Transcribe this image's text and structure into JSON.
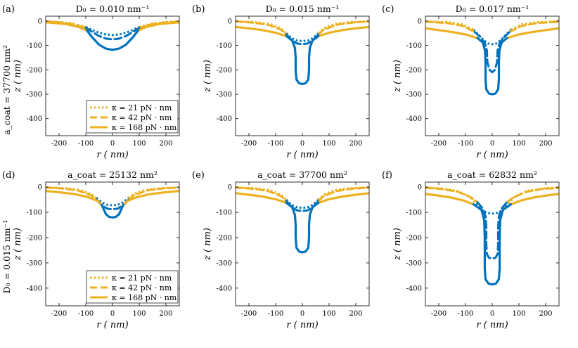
{
  "row_labels": [
    "a_coat = 37700 nm²",
    "D₀ = 0.015 nm⁻¹"
  ],
  "legend": [
    {
      "label": "κ = 21 pN · nm",
      "style": "dotted"
    },
    {
      "label": "κ = 42 pN · nm",
      "style": "dashed"
    },
    {
      "label": "κ = 168 pN · nm",
      "style": "solid"
    }
  ],
  "colors": {
    "coat": "#0072BD",
    "bare": "#EDB120"
  },
  "chart_data": [
    {
      "panel": "(a)",
      "title": "D₀ = 0.010 nm⁻¹",
      "type": "line",
      "xlabel": "r ( nm)",
      "ylabel": "z ( nm)",
      "xlim": [
        -250,
        250
      ],
      "ylim": [
        -470,
        20
      ],
      "xticks": [
        -200,
        -100,
        0,
        100,
        200
      ],
      "yticks": [
        0,
        -100,
        -200,
        -300,
        -400
      ],
      "series": [
        {
          "name": "κ = 21 pN·nm",
          "style": "dotted",
          "coat_radius": 105,
          "points": [
            [
              0,
              -57
            ],
            [
              25,
              -55
            ],
            [
              50,
              -48
            ],
            [
              75,
              -37
            ],
            [
              100,
              -24
            ],
            [
              150,
              -10
            ],
            [
              200,
              -4
            ],
            [
              250,
              -2
            ]
          ]
        },
        {
          "name": "κ = 42 pN·nm",
          "style": "dashed",
          "coat_radius": 100,
          "points": [
            [
              0,
              -75
            ],
            [
              25,
              -72
            ],
            [
              50,
              -62
            ],
            [
              75,
              -45
            ],
            [
              100,
              -28
            ],
            [
              150,
              -12
            ],
            [
              200,
              -5
            ],
            [
              250,
              -2
            ]
          ]
        },
        {
          "name": "κ = 168 pN·nm",
          "style": "solid",
          "coat_radius": 95,
          "points": [
            [
              0,
              -118
            ],
            [
              25,
              -113
            ],
            [
              50,
              -97
            ],
            [
              75,
              -68
            ],
            [
              95,
              -40
            ],
            [
              125,
              -25
            ],
            [
              175,
              -12
            ],
            [
              250,
              -5
            ]
          ]
        }
      ]
    },
    {
      "panel": "(b)",
      "title": "D₀ = 0.015 nm⁻¹",
      "type": "line",
      "xlabel": "r ( nm)",
      "ylabel": "z ( nm)",
      "xlim": [
        -250,
        250
      ],
      "ylim": [
        -470,
        20
      ],
      "xticks": [
        -200,
        -100,
        0,
        100,
        200
      ],
      "yticks": [
        0,
        -100,
        -200,
        -300,
        -400
      ],
      "series": [
        {
          "name": "κ = 21 pN·nm",
          "style": "dotted",
          "coat_radius": 75,
          "points": [
            [
              0,
              -82
            ],
            [
              20,
              -80
            ],
            [
              40,
              -70
            ],
            [
              60,
              -50
            ],
            [
              80,
              -30
            ],
            [
              120,
              -12
            ],
            [
              180,
              -4
            ],
            [
              250,
              -1
            ]
          ]
        },
        {
          "name": "κ = 42 pN·nm",
          "style": "dashed",
          "coat_radius": 70,
          "points": [
            [
              0,
              -95
            ],
            [
              20,
              -92
            ],
            [
              40,
              -78
            ],
            [
              60,
              -55
            ],
            [
              80,
              -35
            ],
            [
              130,
              -15
            ],
            [
              190,
              -6
            ],
            [
              250,
              -2
            ]
          ]
        },
        {
          "name": "κ = 168 pN·nm",
          "style": "solid",
          "coat_radius": 60,
          "points": [
            [
              0,
              -258
            ],
            [
              12,
              -255
            ],
            [
              22,
              -240
            ],
            [
              25,
              -200
            ],
            [
              25,
              -150
            ],
            [
              28,
              -110
            ],
            [
              38,
              -80
            ],
            [
              60,
              -62
            ],
            [
              100,
              -48
            ],
            [
              150,
              -37
            ],
            [
              200,
              -30
            ],
            [
              250,
              -24
            ]
          ]
        }
      ]
    },
    {
      "panel": "(c)",
      "title": "D₀ = 0.017 nm⁻¹",
      "type": "line",
      "xlabel": "r ( nm)",
      "ylabel": "z ( nm)",
      "xlim": [
        -250,
        250
      ],
      "ylim": [
        -470,
        20
      ],
      "xticks": [
        -200,
        -100,
        0,
        100,
        200
      ],
      "yticks": [
        0,
        -100,
        -200,
        -300,
        -400
      ],
      "series": [
        {
          "name": "κ = 21 pN·nm",
          "style": "dotted",
          "coat_radius": 70,
          "points": [
            [
              0,
              -95
            ],
            [
              15,
              -92
            ],
            [
              30,
              -80
            ],
            [
              50,
              -58
            ],
            [
              70,
              -35
            ],
            [
              110,
              -14
            ],
            [
              170,
              -4
            ],
            [
              250,
              -1
            ]
          ]
        },
        {
          "name": "κ = 42 pN·nm",
          "style": "dashed",
          "coat_radius": 65,
          "points": [
            [
              0,
              -210
            ],
            [
              10,
              -200
            ],
            [
              18,
              -170
            ],
            [
              20,
              -120
            ],
            [
              28,
              -90
            ],
            [
              45,
              -65
            ],
            [
              65,
              -45
            ],
            [
              110,
              -20
            ],
            [
              170,
              -8
            ],
            [
              250,
              -3
            ]
          ]
        },
        {
          "name": "κ = 168 pN·nm",
          "style": "solid",
          "coat_radius": 55,
          "points": [
            [
              0,
              -300
            ],
            [
              12,
              -297
            ],
            [
              22,
              -280
            ],
            [
              25,
              -240
            ],
            [
              25,
              -170
            ],
            [
              27,
              -120
            ],
            [
              35,
              -88
            ],
            [
              55,
              -70
            ],
            [
              100,
              -55
            ],
            [
              150,
              -45
            ],
            [
              200,
              -37
            ],
            [
              250,
              -30
            ]
          ]
        }
      ]
    },
    {
      "panel": "(d)",
      "title": "a_coat = 25132 nm²",
      "type": "line",
      "xlabel": "r ( nm)",
      "ylabel": "z ( nm)",
      "xlim": [
        -250,
        250
      ],
      "ylim": [
        -470,
        20
      ],
      "xticks": [
        -200,
        -100,
        0,
        100,
        200
      ],
      "yticks": [
        0,
        -100,
        -200,
        -300,
        -400
      ],
      "series": [
        {
          "name": "κ = 21 pN·nm",
          "style": "dotted",
          "coat_radius": 75,
          "points": [
            [
              0,
              -72
            ],
            [
              20,
              -70
            ],
            [
              40,
              -60
            ],
            [
              60,
              -43
            ],
            [
              80,
              -27
            ],
            [
              120,
              -12
            ],
            [
              180,
              -4
            ],
            [
              250,
              -1
            ]
          ]
        },
        {
          "name": "κ = 42 pN·nm",
          "style": "dashed",
          "coat_radius": 70,
          "points": [
            [
              0,
              -88
            ],
            [
              20,
              -85
            ],
            [
              40,
              -72
            ],
            [
              60,
              -50
            ],
            [
              80,
              -32
            ],
            [
              130,
              -13
            ],
            [
              190,
              -5
            ],
            [
              250,
              -2
            ]
          ]
        },
        {
          "name": "κ = 168 pN·nm",
          "style": "solid",
          "coat_radius": 50,
          "points": [
            [
              0,
              -120
            ],
            [
              12,
              -118
            ],
            [
              24,
              -108
            ],
            [
              32,
              -90
            ],
            [
              40,
              -70
            ],
            [
              55,
              -55
            ],
            [
              90,
              -40
            ],
            [
              140,
              -28
            ],
            [
              200,
              -20
            ],
            [
              250,
              -15
            ]
          ]
        }
      ]
    },
    {
      "panel": "(e)",
      "title": "a_coat = 37700 nm²",
      "type": "line",
      "xlabel": "r ( nm)",
      "ylabel": "z ( nm)",
      "xlim": [
        -250,
        250
      ],
      "ylim": [
        -470,
        20
      ],
      "xticks": [
        -200,
        -100,
        0,
        100,
        200
      ],
      "yticks": [
        0,
        -100,
        -200,
        -300,
        -400
      ],
      "series": [
        {
          "name": "κ = 21 pN·nm",
          "style": "dotted",
          "coat_radius": 75,
          "points": [
            [
              0,
              -82
            ],
            [
              20,
              -80
            ],
            [
              40,
              -70
            ],
            [
              60,
              -50
            ],
            [
              80,
              -30
            ],
            [
              120,
              -12
            ],
            [
              180,
              -4
            ],
            [
              250,
              -1
            ]
          ]
        },
        {
          "name": "κ = 42 pN·nm",
          "style": "dashed",
          "coat_radius": 70,
          "points": [
            [
              0,
              -95
            ],
            [
              20,
              -92
            ],
            [
              40,
              -78
            ],
            [
              60,
              -55
            ],
            [
              80,
              -35
            ],
            [
              130,
              -15
            ],
            [
              190,
              -6
            ],
            [
              250,
              -2
            ]
          ]
        },
        {
          "name": "κ = 168 pN·nm",
          "style": "solid",
          "coat_radius": 60,
          "points": [
            [
              0,
              -258
            ],
            [
              12,
              -255
            ],
            [
              22,
              -240
            ],
            [
              25,
              -200
            ],
            [
              25,
              -150
            ],
            [
              28,
              -110
            ],
            [
              38,
              -80
            ],
            [
              60,
              -62
            ],
            [
              100,
              -48
            ],
            [
              150,
              -37
            ],
            [
              200,
              -30
            ],
            [
              250,
              -24
            ]
          ]
        }
      ]
    },
    {
      "panel": "(f)",
      "title": "a_coat = 62832 nm²",
      "type": "line",
      "xlabel": "r ( nm)",
      "ylabel": "z ( nm)",
      "xlim": [
        -250,
        250
      ],
      "ylim": [
        -470,
        20
      ],
      "xticks": [
        -200,
        -100,
        0,
        100,
        200
      ],
      "yticks": [
        0,
        -100,
        -200,
        -300,
        -400
      ],
      "series": [
        {
          "name": "κ = 21 pN·nm",
          "style": "dotted",
          "coat_radius": 80,
          "points": [
            [
              0,
              -105
            ],
            [
              20,
              -102
            ],
            [
              40,
              -90
            ],
            [
              60,
              -65
            ],
            [
              85,
              -38
            ],
            [
              130,
              -15
            ],
            [
              190,
              -5
            ],
            [
              250,
              -1
            ]
          ]
        },
        {
          "name": "κ = 42 pN·nm",
          "style": "dashed",
          "coat_radius": 75,
          "points": [
            [
              0,
              -282
            ],
            [
              12,
              -280
            ],
            [
              20,
              -265
            ],
            [
              22,
              -230
            ],
            [
              22,
              -160
            ],
            [
              25,
              -115
            ],
            [
              35,
              -85
            ],
            [
              55,
              -60
            ],
            [
              80,
              -40
            ],
            [
              130,
              -18
            ],
            [
              190,
              -7
            ],
            [
              250,
              -3
            ]
          ]
        },
        {
          "name": "κ = 168 pN·nm",
          "style": "solid",
          "coat_radius": 70,
          "points": [
            [
              0,
              -385
            ],
            [
              14,
              -382
            ],
            [
              25,
              -365
            ],
            [
              28,
              -320
            ],
            [
              28,
              -200
            ],
            [
              30,
              -130
            ],
            [
              40,
              -90
            ],
            [
              70,
              -68
            ],
            [
              110,
              -52
            ],
            [
              160,
              -40
            ],
            [
              210,
              -32
            ],
            [
              250,
              -27
            ]
          ]
        }
      ]
    }
  ]
}
